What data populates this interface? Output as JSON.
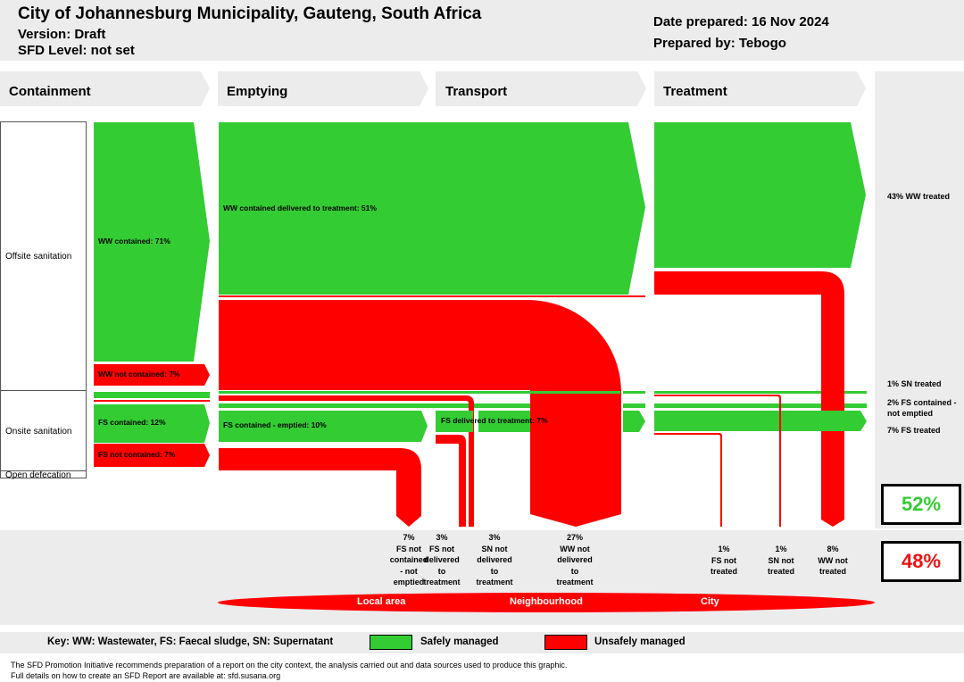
{
  "header": {
    "title": "City of Johannesburg Municipality, Gauteng, South Africa",
    "version": "Version: Draft",
    "sfd_level": "SFD Level: not set",
    "date_prepared": "Date prepared: 16 Nov 2024",
    "prepared_by": "Prepared by: Tebogo"
  },
  "stages": [
    "Containment",
    "Emptying",
    "Transport",
    "Treatment"
  ],
  "sanitation_types": {
    "offsite": "Offsite sanitation",
    "onsite": "Onsite sanitation",
    "open": "Open defecation"
  },
  "flows": {
    "ww_contained": "WW contained: 71%",
    "ww_not_contained": "WW not contained: 7%",
    "fs_contained": "FS contained: 12%",
    "fs_not_contained": "FS not contained: 7%",
    "ww_delivered": "WW contained delivered to treatment: 51%",
    "fs_emptied": "FS contained - emptied: 10%",
    "fs_delivered": "FS delivered to treatment: 7%"
  },
  "outcomes": {
    "ww_treated": "43% WW treated",
    "sn_treated": "1% SN treated",
    "fs_not_emptied": "2% FS contained - not emptied",
    "fs_treated": "7% FS treated"
  },
  "losses": {
    "fs_not_contained_not_emptied": "7%\nFS not\ncontained\n- not\nemptied",
    "fs_not_delivered": "3%\nFS not\ndelivered\nto\ntreatment",
    "sn_not_delivered": "3%\nSN not\ndelivered\nto\ntreatment",
    "ww_not_delivered": "27%\nWW not\ndelivered\nto\ntreatment",
    "fs_not_treated": "1%\nFS not\ntreated",
    "sn_not_treated": "1%\nSN not\ntreated",
    "ww_not_treated": "8%\nWW not\ntreated"
  },
  "summary": {
    "safe_pct": "52%",
    "unsafe_pct": "48%"
  },
  "zones": [
    "Local area",
    "Neighbourhood",
    "City"
  ],
  "key": {
    "abbreviations": "Key: WW: Wastewater, FS: Faecal sludge, SN: Supernatant",
    "safe": "Safely managed",
    "unsafe": "Unsafely managed"
  },
  "footer": {
    "line1": "The SFD Promotion Initiative recommends preparation of a report on the city context, the analysis carried out and data sources used to produce this graphic.",
    "line2": "Full details on how to create an SFD Report are available at: sfd.susana.org"
  },
  "colors": {
    "safe": "#33cc33",
    "unsafe": "#ff0000",
    "safe_text": "#33cc33",
    "unsafe_text": "#ee1111"
  }
}
